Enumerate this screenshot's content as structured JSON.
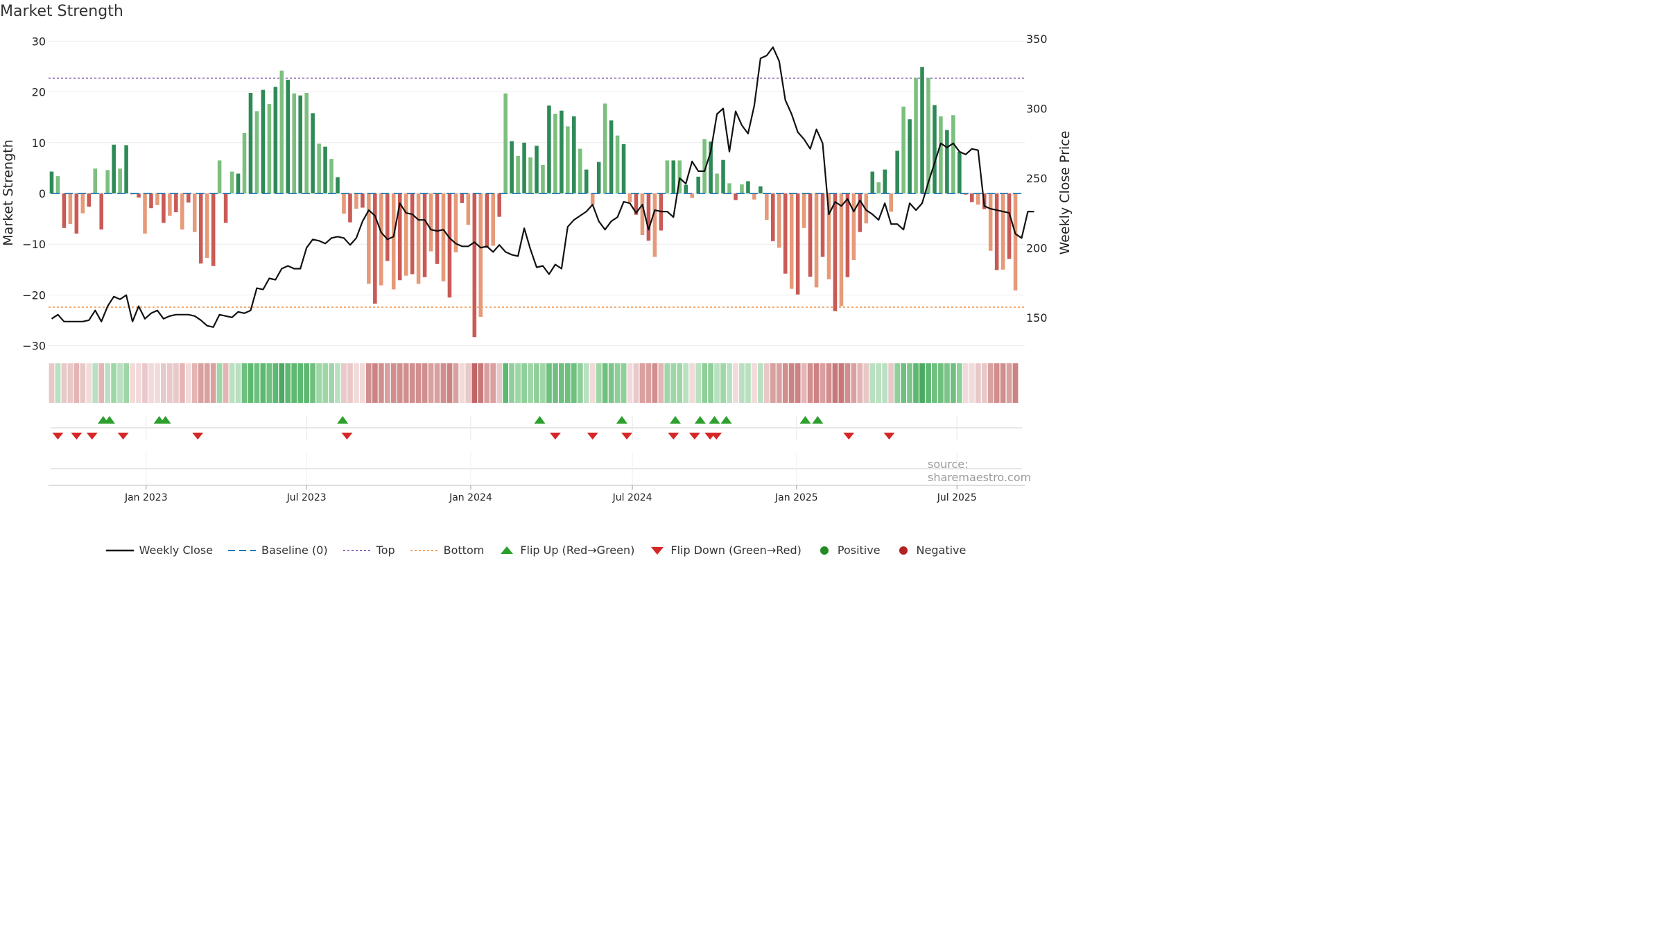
{
  "page_title": "Market Strength",
  "source_text": "source: sharemaestro.com",
  "colors": {
    "strong_pos": "#2e8a57",
    "weak_pos": "#7cbf7e",
    "strong_neg": "#c95a56",
    "weak_neg": "#e69a78",
    "price": "#111111",
    "baseline": "#1f77b4",
    "top": "#9467bd",
    "bottom": "#f0a060",
    "flip_up": "#2ca02c",
    "flip_down": "#d62728",
    "positive": "#228b22",
    "negative": "#b22222"
  },
  "legend": [
    {
      "key": "price",
      "label": "Weekly Close"
    },
    {
      "key": "baseline",
      "label": "Baseline (0)"
    },
    {
      "key": "top",
      "label": "Top"
    },
    {
      "key": "bottom",
      "label": "Bottom"
    },
    {
      "key": "flip_up",
      "label": "Flip Up (Red→Green)"
    },
    {
      "key": "flip_down",
      "label": "Flip Down (Green→Red)"
    },
    {
      "key": "positive",
      "label": "Positive"
    },
    {
      "key": "negative",
      "label": "Negative"
    }
  ],
  "chart_data": {
    "type": "bar",
    "title": "Market Strength",
    "ylabel": "Market Strength",
    "y2label": "Weekly Close Price",
    "ylim": [
      -31,
      31
    ],
    "y_ticks": [
      30,
      20,
      10,
      0,
      -10,
      -20,
      -30
    ],
    "y2lim": [
      126,
      352
    ],
    "y2_ticks": [
      350,
      300,
      250,
      200,
      150
    ],
    "top_line": 22.7,
    "bottom_line": -22.4,
    "baseline": 0,
    "start_week": 0,
    "week_count": 157,
    "x_ticks": [
      {
        "label": "Jan 2023",
        "week": 15.2
      },
      {
        "label": "Jul 2023",
        "week": 41.0
      },
      {
        "label": "Jan 2024",
        "week": 67.4
      },
      {
        "label": "Jul 2024",
        "week": 93.4
      },
      {
        "label": "Jan 2025",
        "week": 119.8
      },
      {
        "label": "Jul 2025",
        "week": 145.6
      }
    ],
    "strength": [
      4.3,
      3.4,
      -6.8,
      -6.0,
      -7.9,
      -3.9,
      -2.6,
      4.9,
      -7.1,
      4.6,
      9.6,
      4.9,
      9.5,
      -0.2,
      -0.8,
      -7.9,
      -2.9,
      -2.3,
      -5.8,
      -4.4,
      -3.7,
      -7.1,
      -1.8,
      -7.6,
      -13.8,
      -12.7,
      -14.3,
      6.5,
      -5.8,
      4.3,
      3.9,
      11.9,
      19.8,
      16.2,
      20.4,
      17.6,
      21.0,
      24.2,
      22.4,
      19.7,
      19.3,
      19.8,
      15.8,
      9.8,
      9.2,
      6.8,
      3.2,
      -4.0,
      -5.7,
      -3.0,
      -2.8,
      -17.8,
      -21.7,
      -18.1,
      -13.3,
      -18.9,
      -17.1,
      -16.2,
      -15.9,
      -17.8,
      -16.5,
      -11.4,
      -13.9,
      -17.3,
      -20.5,
      -11.6,
      -1.9,
      -6.2,
      -28.3,
      -24.3,
      -10.7,
      -10.3,
      -4.6,
      19.7,
      10.3,
      7.4,
      10.0,
      7.1,
      9.4,
      5.6,
      17.3,
      15.7,
      16.3,
      13.2,
      15.2,
      8.8,
      4.7,
      -2.2,
      6.2,
      17.7,
      14.4,
      11.4,
      9.7,
      -1.7,
      -4.2,
      -8.2,
      -9.3,
      -12.5,
      -7.3,
      6.5,
      6.5,
      6.5,
      1.7,
      -0.9,
      3.3,
      10.7,
      10.2,
      3.9,
      6.6,
      2.0,
      -1.3,
      1.8,
      2.4,
      -1.2,
      1.4,
      -5.2,
      -9.4,
      -10.7,
      -15.8,
      -18.8,
      -19.9,
      -6.8,
      -16.4,
      -18.5,
      -12.5,
      -16.9,
      -23.2,
      -22.2,
      -16.5,
      -13.1,
      -7.6,
      -5.9,
      4.3,
      2.2,
      4.7,
      -3.6,
      8.4,
      17.1,
      14.6,
      22.8,
      24.9,
      22.8,
      17.4,
      15.2,
      12.5,
      15.4,
      8.2,
      -0.3,
      -1.7,
      -2.2,
      -3.1,
      -11.3,
      -15.1,
      -15.0,
      -12.9,
      -19.1
    ],
    "price": [
      149,
      152,
      147,
      147,
      147,
      147,
      148,
      155,
      147,
      158,
      165,
      163,
      166,
      147,
      158,
      149,
      153,
      155,
      149,
      151,
      152,
      152,
      152,
      151,
      148,
      144,
      143,
      152,
      151,
      150,
      154,
      153,
      155,
      171,
      170,
      178,
      177,
      185,
      187,
      185,
      185,
      200,
      206,
      205,
      203,
      207,
      208,
      207,
      202,
      207,
      219,
      227,
      223,
      211,
      206,
      208,
      232,
      225,
      224,
      220,
      220,
      213,
      212,
      213,
      207,
      203,
      201,
      201,
      204,
      200,
      201,
      197,
      202,
      197,
      195,
      194,
      214,
      199,
      186,
      187,
      181,
      188,
      185,
      215,
      220,
      223,
      226,
      231,
      219,
      213,
      219,
      222,
      233,
      232,
      225,
      231,
      213,
      227,
      226,
      226,
      222,
      250,
      246,
      262,
      255,
      255,
      269,
      296,
      300,
      269,
      298,
      288,
      282,
      302,
      336,
      338,
      344,
      334,
      306,
      296,
      283,
      278,
      271,
      285,
      275,
      224,
      233,
      230,
      235,
      226,
      234,
      227,
      224,
      220,
      232,
      217,
      217,
      213,
      232,
      227,
      232,
      247,
      261,
      275,
      272,
      275,
      269,
      267,
      271,
      270,
      230,
      228,
      227,
      226,
      225,
      210,
      207,
      226,
      226
    ],
    "flip_up": [
      8.3,
      9.3,
      17.3,
      18.3,
      46.8,
      78.5,
      91.7,
      100.3,
      104.3,
      106.6,
      108.5,
      121.2,
      123.2
    ],
    "flip_down": [
      1.0,
      4.0,
      6.5,
      11.5,
      23.5,
      47.5,
      81.0,
      87.0,
      92.5,
      100.0,
      103.4,
      105.9,
      106.9,
      128.2,
      134.7
    ],
    "bottom_strip_colors": [
      "#e8c8c8",
      "#b9e0c0",
      "#e8c8c8",
      "#e8c8c8",
      "#e5b4b4",
      "#e8c8c8",
      "#f2dada",
      "#b9e0c0",
      "#e5b4b4",
      "#b9e0c0",
      "#9fd6a7",
      "#b9e0c0",
      "#9fd6a7",
      "#f2dada",
      "#f2dada",
      "#e8c8c8",
      "#f2dada",
      "#f2dada",
      "#e8c8c8",
      "#e8c8c8",
      "#e8c8c8",
      "#e5b4b4",
      "#f2dada",
      "#e5b4b4",
      "#d9a0a0",
      "#d9a0a0",
      "#d9a0a0",
      "#9fd6a7",
      "#e5b4b4",
      "#b9e0c0",
      "#b9e0c0",
      "#6fbf7f",
      "#5db870",
      "#6fbf7f",
      "#5db870",
      "#6fbf7f",
      "#5db870",
      "#4ca862",
      "#5db870",
      "#5db870",
      "#5db870",
      "#5db870",
      "#6fbf7f",
      "#9fd6a7",
      "#9fd6a7",
      "#9fd6a7",
      "#b9e0c0",
      "#e8c8c8",
      "#e8c8c8",
      "#f2dada",
      "#f2dada",
      "#d18e8e",
      "#cc8383",
      "#d18e8e",
      "#d9a0a0",
      "#d18e8e",
      "#d18e8e",
      "#d18e8e",
      "#d18e8e",
      "#d18e8e",
      "#d18e8e",
      "#d9a0a0",
      "#d9a0a0",
      "#d18e8e",
      "#cc8383",
      "#d9a0a0",
      "#f2dada",
      "#e8c8c8",
      "#c06666",
      "#c87878",
      "#d9a0a0",
      "#d9a0a0",
      "#e8c8c8",
      "#5db870",
      "#8fcf99",
      "#9fd6a7",
      "#8fcf99",
      "#9fd6a7",
      "#8fcf99",
      "#9fd6a7",
      "#6fbf7f",
      "#6fbf7f",
      "#6fbf7f",
      "#6fbf7f",
      "#6fbf7f",
      "#8fcf99",
      "#b9e0c0",
      "#f2dada",
      "#9fd6a7",
      "#6fbf7f",
      "#7cc58a",
      "#8fcf99",
      "#8fcf99",
      "#f2dada",
      "#e8c8c8",
      "#d9a0a0",
      "#d9a0a0",
      "#d18e8e",
      "#e5b4b4",
      "#9fd6a7",
      "#9fd6a7",
      "#9fd6a7",
      "#b9e0c0",
      "#f2dada",
      "#b9e0c0",
      "#8fcf99",
      "#8fcf99",
      "#b9e0c0",
      "#9fd6a7",
      "#b9e0c0",
      "#f2dada",
      "#b9e0c0",
      "#b9e0c0",
      "#f2dada",
      "#b9e0c0",
      "#e8c8c8",
      "#d9a0a0",
      "#d9a0a0",
      "#d18e8e",
      "#cc8383",
      "#cc8383",
      "#e5b4b4",
      "#d18e8e",
      "#cc8383",
      "#d9a0a0",
      "#d18e8e",
      "#c87878",
      "#c87878",
      "#d18e8e",
      "#d9a0a0",
      "#e5b4b4",
      "#e8c8c8",
      "#b9e0c0",
      "#b9e0c0",
      "#b9e0c0",
      "#e8c8c8",
      "#8fcf99",
      "#6fbf7f",
      "#7cc58a",
      "#5db870",
      "#4ca862",
      "#5db870",
      "#6fbf7f",
      "#6fbf7f",
      "#7cc58a",
      "#6fbf7f",
      "#8fcf99",
      "#f2dada",
      "#f2dada",
      "#e8c8c8",
      "#e8c8c8",
      "#d9a0a0",
      "#d18e8e",
      "#d18e8e",
      "#d9a0a0",
      "#cc8383"
    ]
  }
}
